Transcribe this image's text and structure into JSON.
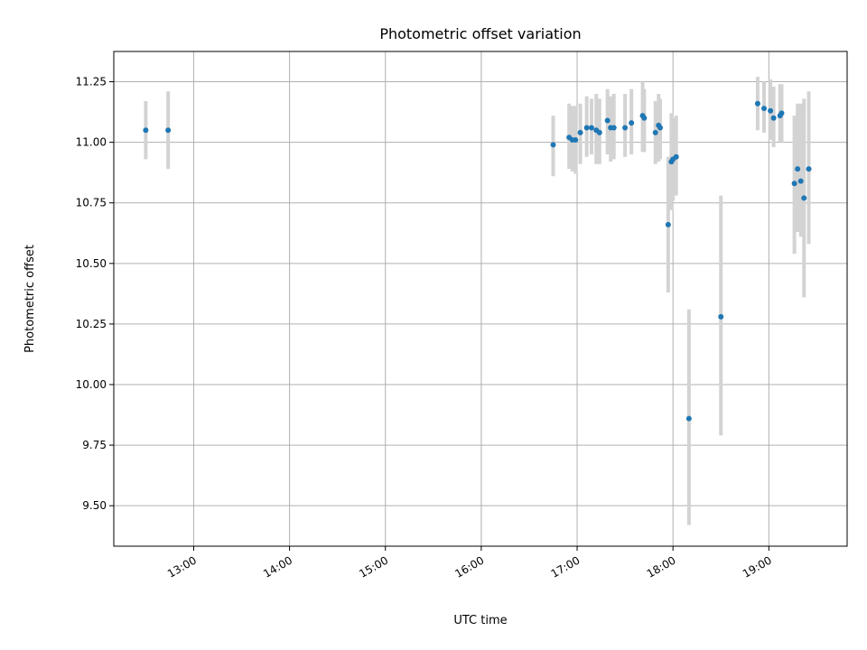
{
  "chart_data": {
    "type": "scatter",
    "title": "Photometric offset variation",
    "xlabel": "UTC time",
    "ylabel": "Photometric offset",
    "xlim": [
      "12:10",
      "19:49"
    ],
    "ylim": [
      9.333,
      11.375
    ],
    "x_ticks": [
      "13:00",
      "14:00",
      "15:00",
      "16:00",
      "17:00",
      "18:00",
      "19:00"
    ],
    "y_ticks": [
      "9.50",
      "9.75",
      "10.00",
      "10.25",
      "10.50",
      "10.75",
      "11.00",
      "11.25"
    ],
    "grid": true,
    "colors": {
      "point": "#1f77b4",
      "errorbar": "#d3d3d3",
      "grid": "#b0b0b0"
    },
    "series": [
      {
        "points": [
          {
            "x": "12:30",
            "y": 11.05,
            "ylo": 10.93,
            "yhi": 11.17
          },
          {
            "x": "12:44",
            "y": 11.05,
            "ylo": 10.89,
            "yhi": 11.21
          },
          {
            "x": "16:45",
            "y": 10.99,
            "ylo": 10.86,
            "yhi": 11.11
          },
          {
            "x": "16:55",
            "y": 11.02,
            "ylo": 10.89,
            "yhi": 11.16
          },
          {
            "x": "16:57",
            "y": 11.01,
            "ylo": 10.88,
            "yhi": 11.15
          },
          {
            "x": "16:59",
            "y": 11.01,
            "ylo": 10.87,
            "yhi": 11.15
          },
          {
            "x": "17:02",
            "y": 11.04,
            "ylo": 10.91,
            "yhi": 11.16
          },
          {
            "x": "17:06",
            "y": 11.06,
            "ylo": 10.94,
            "yhi": 11.19
          },
          {
            "x": "17:09",
            "y": 11.06,
            "ylo": 10.95,
            "yhi": 11.18
          },
          {
            "x": "17:12",
            "y": 11.05,
            "ylo": 10.91,
            "yhi": 11.2
          },
          {
            "x": "17:14",
            "y": 11.04,
            "ylo": 10.91,
            "yhi": 11.18
          },
          {
            "x": "17:19",
            "y": 11.09,
            "ylo": 10.95,
            "yhi": 11.22
          },
          {
            "x": "17:21",
            "y": 11.06,
            "ylo": 10.92,
            "yhi": 11.19
          },
          {
            "x": "17:23",
            "y": 11.06,
            "ylo": 10.93,
            "yhi": 11.2
          },
          {
            "x": "17:30",
            "y": 11.06,
            "ylo": 10.94,
            "yhi": 11.2
          },
          {
            "x": "17:34",
            "y": 11.08,
            "ylo": 10.95,
            "yhi": 11.22
          },
          {
            "x": "17:41",
            "y": 11.11,
            "ylo": 10.96,
            "yhi": 11.25
          },
          {
            "x": "17:42",
            "y": 11.1,
            "ylo": 10.96,
            "yhi": 11.22
          },
          {
            "x": "17:49",
            "y": 11.04,
            "ylo": 10.91,
            "yhi": 11.17
          },
          {
            "x": "17:51",
            "y": 11.07,
            "ylo": 10.92,
            "yhi": 11.2
          },
          {
            "x": "17:52",
            "y": 11.06,
            "ylo": 10.93,
            "yhi": 11.18
          },
          {
            "x": "17:57",
            "y": 10.66,
            "ylo": 10.38,
            "yhi": 10.94
          },
          {
            "x": "17:59",
            "y": 10.92,
            "ylo": 10.72,
            "yhi": 11.12
          },
          {
            "x": "18:00",
            "y": 10.93,
            "ylo": 10.76,
            "yhi": 11.1
          },
          {
            "x": "18:02",
            "y": 10.94,
            "ylo": 10.78,
            "yhi": 11.11
          },
          {
            "x": "18:10",
            "y": 9.86,
            "ylo": 9.42,
            "yhi": 10.31
          },
          {
            "x": "18:30",
            "y": 10.28,
            "ylo": 9.79,
            "yhi": 10.78
          },
          {
            "x": "18:53",
            "y": 11.16,
            "ylo": 11.05,
            "yhi": 11.27
          },
          {
            "x": "18:57",
            "y": 11.14,
            "ylo": 11.04,
            "yhi": 11.25
          },
          {
            "x": "19:01",
            "y": 11.13,
            "ylo": 11.01,
            "yhi": 11.26
          },
          {
            "x": "19:03",
            "y": 11.1,
            "ylo": 10.98,
            "yhi": 11.23
          },
          {
            "x": "19:07",
            "y": 11.11,
            "ylo": 11.0,
            "yhi": 11.24
          },
          {
            "x": "19:08",
            "y": 11.12,
            "ylo": 11.0,
            "yhi": 11.24
          },
          {
            "x": "19:16",
            "y": 10.83,
            "ylo": 10.54,
            "yhi": 11.11
          },
          {
            "x": "19:18",
            "y": 10.89,
            "ylo": 10.63,
            "yhi": 11.16
          },
          {
            "x": "19:20",
            "y": 10.84,
            "ylo": 10.61,
            "yhi": 11.16
          },
          {
            "x": "19:22",
            "y": 10.77,
            "ylo": 10.36,
            "yhi": 11.18
          },
          {
            "x": "19:25",
            "y": 10.89,
            "ylo": 10.58,
            "yhi": 11.21
          }
        ]
      }
    ]
  }
}
